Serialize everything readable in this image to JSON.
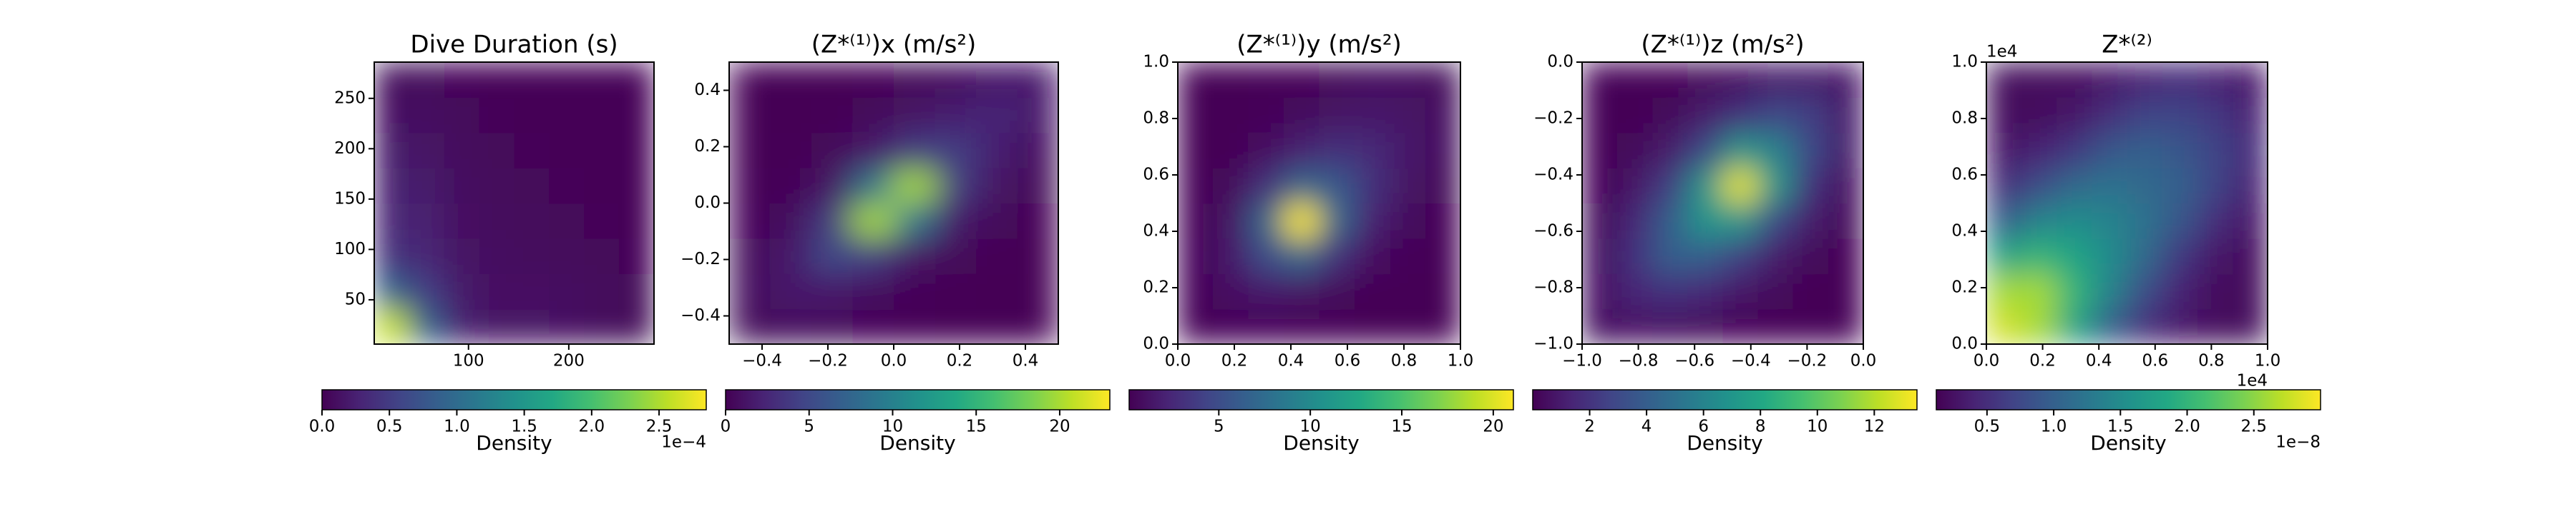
{
  "chart_data": [
    {
      "type": "heatmap",
      "title": "Dive Duration (s)",
      "xlim": [
        6,
        285
      ],
      "ylim": [
        6,
        286
      ],
      "xticks": [
        100,
        200
      ],
      "yticks": [
        50,
        100,
        150,
        200,
        250
      ],
      "colorbar": {
        "label": "Density",
        "clim": [
          0,
          0.000285
        ],
        "offset_label": "1e−4",
        "ticks": [
          {
            "value": 0,
            "label": "0.0"
          },
          {
            "value": 5e-05,
            "label": "0.5"
          },
          {
            "value": 0.0001,
            "label": "1.0"
          },
          {
            "value": 0.00015,
            "label": "1.5"
          },
          {
            "value": 0.0002,
            "label": "2.0"
          },
          {
            "value": 0.00025,
            "label": "2.5"
          }
        ]
      },
      "z": [
        [
          0.00026,
          9e-05,
          2.5e-05,
          1.5e-05,
          1.5e-05,
          1.2e-05,
          8e-06,
          5e-06
        ],
        [
          9e-05,
          5e-05,
          2e-05,
          1.2e-05,
          1.2e-05,
          1e-05,
          7e-06,
          5e-06
        ],
        [
          4e-05,
          3e-05,
          1.5e-05,
          1e-05,
          8e-06,
          7e-06,
          5e-06,
          4e-06
        ],
        [
          3e-05,
          2.5e-05,
          1.2e-05,
          8e-06,
          6e-06,
          5e-06,
          4e-06,
          3e-06
        ],
        [
          2.5e-05,
          2e-05,
          1e-05,
          7e-06,
          5e-06,
          4e-06,
          3e-06,
          3e-06
        ],
        [
          2e-05,
          1.5e-05,
          8e-06,
          5e-06,
          4e-06,
          3e-06,
          3e-06,
          2e-06
        ],
        [
          1.2e-05,
          1e-05,
          6e-06,
          4e-06,
          3e-06,
          3e-06,
          2e-06,
          2e-06
        ],
        [
          8e-06,
          6e-06,
          4e-06,
          3e-06,
          2e-06,
          2e-06,
          2e-06,
          2e-06
        ]
      ]
    },
    {
      "type": "heatmap",
      "title": "(Z*⁽¹⁾)x (m/s²)",
      "xlim": [
        -0.5,
        0.5
      ],
      "ylim": [
        -0.5,
        0.5
      ],
      "xticks": [
        {
          "value": -0.4,
          "label": "−0.4"
        },
        {
          "value": -0.2,
          "label": "−0.2"
        },
        {
          "value": 0,
          "label": "0.0"
        },
        {
          "value": 0.2,
          "label": "0.2"
        },
        {
          "value": 0.4,
          "label": "0.4"
        }
      ],
      "yticks": [
        {
          "value": -0.4,
          "label": "−0.4"
        },
        {
          "value": -0.2,
          "label": "−0.2"
        },
        {
          "value": 0,
          "label": "0.0"
        },
        {
          "value": 0.2,
          "label": "0.2"
        },
        {
          "value": 0.4,
          "label": "0.4"
        }
      ],
      "colorbar": {
        "label": "Density",
        "clim": [
          0,
          23
        ],
        "ticks": [
          0,
          5,
          10,
          15,
          20
        ]
      },
      "z": [
        [
          0.5,
          0.6,
          0.5,
          0.3,
          0.2,
          0.1,
          0.1,
          0.1
        ],
        [
          0.6,
          1.5,
          1.5,
          0.8,
          0.3,
          0.2,
          0.1,
          0.1
        ],
        [
          0.5,
          1.5,
          5,
          4,
          1.2,
          0.4,
          0.2,
          0.1
        ],
        [
          0.3,
          0.8,
          4,
          20,
          9,
          1.5,
          0.5,
          0.2
        ],
        [
          0.2,
          0.3,
          1.2,
          9,
          20,
          4,
          1.2,
          0.4
        ],
        [
          0.1,
          0.2,
          0.4,
          1.5,
          4,
          4,
          2,
          0.8
        ],
        [
          0.1,
          0.1,
          0.2,
          0.5,
          1.2,
          2,
          2.5,
          1.5
        ],
        [
          0.1,
          0.1,
          0.1,
          0.2,
          0.4,
          0.8,
          1.5,
          1.5
        ]
      ]
    },
    {
      "type": "heatmap",
      "title": "(Z*⁽¹⁾)y (m/s²)",
      "xlim": [
        0,
        1
      ],
      "ylim": [
        0,
        1
      ],
      "xticks": [
        {
          "value": 0,
          "label": "0.0"
        },
        {
          "value": 0.2,
          "label": "0.2"
        },
        {
          "value": 0.4,
          "label": "0.4"
        },
        {
          "value": 0.6,
          "label": "0.6"
        },
        {
          "value": 0.8,
          "label": "0.8"
        },
        {
          "value": 1,
          "label": "1.0"
        }
      ],
      "yticks": [
        {
          "value": 0,
          "label": "0.0"
        },
        {
          "value": 0.2,
          "label": "0.2"
        },
        {
          "value": 0.4,
          "label": "0.4"
        },
        {
          "value": 0.6,
          "label": "0.6"
        },
        {
          "value": 0.8,
          "label": "0.8"
        },
        {
          "value": 1,
          "label": "1.0"
        }
      ],
      "colorbar": {
        "label": "Density",
        "clim": [
          0.1,
          21.1
        ],
        "ticks": [
          5,
          10,
          15,
          20
        ]
      },
      "z": [
        [
          0.3,
          0.4,
          0.4,
          0.3,
          0.2,
          0.1,
          0.1,
          0.1
        ],
        [
          0.4,
          1,
          1.5,
          1.2,
          0.6,
          0.3,
          0.2,
          0.1
        ],
        [
          0.4,
          1.5,
          5,
          7,
          3,
          1,
          0.4,
          0.2
        ],
        [
          0.3,
          1.2,
          7,
          21,
          7,
          2,
          0.8,
          0.3
        ],
        [
          0.2,
          0.6,
          3,
          7,
          6,
          3,
          1.2,
          0.5
        ],
        [
          0.1,
          0.3,
          1,
          2,
          3,
          2.5,
          1.5,
          0.8
        ],
        [
          0.1,
          0.2,
          0.4,
          0.8,
          1.2,
          1.5,
          1.2,
          0.8
        ],
        [
          0.1,
          0.1,
          0.2,
          0.3,
          0.5,
          0.8,
          0.8,
          0.6
        ]
      ]
    },
    {
      "type": "heatmap",
      "title": "(Z*⁽¹⁾)z (m/s²)",
      "xlim": [
        -1,
        0
      ],
      "ylim": [
        -1,
        0
      ],
      "xticks": [
        {
          "value": -1,
          "label": "−1.0"
        },
        {
          "value": -0.8,
          "label": "−0.8"
        },
        {
          "value": -0.6,
          "label": "−0.6"
        },
        {
          "value": -0.4,
          "label": "−0.4"
        },
        {
          "value": -0.2,
          "label": "−0.2"
        },
        {
          "value": 0,
          "label": "0.0"
        }
      ],
      "yticks": [
        {
          "value": -1,
          "label": "−1.0"
        },
        {
          "value": -0.8,
          "label": "−0.8"
        },
        {
          "value": -0.6,
          "label": "−0.6"
        },
        {
          "value": -0.4,
          "label": "−0.4"
        },
        {
          "value": -0.2,
          "label": "−0.2"
        },
        {
          "value": 0,
          "label": "0.0"
        }
      ],
      "colorbar": {
        "label": "Density",
        "clim": [
          0,
          13.5
        ],
        "ticks": [
          2,
          4,
          6,
          8,
          10,
          12
        ]
      },
      "z": [
        [
          0.5,
          0.6,
          0.5,
          0.3,
          0.2,
          0.1,
          0.1,
          0.1
        ],
        [
          0.6,
          1.5,
          2,
          1.5,
          0.8,
          0.3,
          0.1,
          0.1
        ],
        [
          0.5,
          2,
          4,
          4,
          2.5,
          1,
          0.3,
          0.1
        ],
        [
          0.3,
          1.5,
          4,
          7,
          7,
          3,
          1,
          0.3
        ],
        [
          0.2,
          0.8,
          2.5,
          7,
          13,
          7,
          2,
          0.5
        ],
        [
          0.1,
          0.3,
          1,
          3,
          7,
          6,
          3,
          1
        ],
        [
          0.1,
          0.1,
          0.3,
          1,
          2,
          3,
          2.5,
          1
        ],
        [
          0.1,
          0.1,
          0.1,
          0.3,
          0.5,
          1,
          1,
          0.8
        ]
      ]
    },
    {
      "type": "heatmap",
      "title": "Z*⁽²⁾",
      "xlim": [
        0,
        10000
      ],
      "ylim": [
        0,
        10000
      ],
      "x_offset_label": "1e4",
      "y_offset_label": "1e4",
      "xticks": [
        {
          "value": 0,
          "label": "0.0"
        },
        {
          "value": 2000,
          "label": "0.2"
        },
        {
          "value": 4000,
          "label": "0.4"
        },
        {
          "value": 6000,
          "label": "0.6"
        },
        {
          "value": 8000,
          "label": "0.8"
        },
        {
          "value": 10000,
          "label": "1.0"
        }
      ],
      "yticks": [
        {
          "value": 0,
          "label": "0.0"
        },
        {
          "value": 2000,
          "label": "0.2"
        },
        {
          "value": 4000,
          "label": "0.4"
        },
        {
          "value": 6000,
          "label": "0.6"
        },
        {
          "value": 8000,
          "label": "0.8"
        },
        {
          "value": 10000,
          "label": "1.0"
        }
      ],
      "colorbar": {
        "label": "Density",
        "clim": [
          1.2e-09,
          3e-08
        ],
        "offset_label": "1e−8",
        "ticks": [
          {
            "value": 5e-09,
            "label": "0.5"
          },
          {
            "value": 1e-08,
            "label": "1.0"
          },
          {
            "value": 1.5e-08,
            "label": "1.5"
          },
          {
            "value": 2e-08,
            "label": "2.0"
          },
          {
            "value": 2.5e-08,
            "label": "2.5"
          }
        ]
      },
      "z": [
        [
          2.8e-08,
          2.6e-08,
          1.8e-08,
          1e-08,
          5e-09,
          3e-09,
          2e-09,
          2e-09
        ],
        [
          2.6e-08,
          2.6e-08,
          2e-08,
          1.4e-08,
          8e-09,
          4e-09,
          2e-09,
          2e-09
        ],
        [
          1.8e-08,
          2e-08,
          1.8e-08,
          1.5e-08,
          1.1e-08,
          6e-09,
          3e-09,
          2e-09
        ],
        [
          1e-08,
          1.4e-08,
          1.5e-08,
          1.4e-08,
          1.2e-08,
          9e-09,
          5e-09,
          3e-09
        ],
        [
          5e-09,
          8e-09,
          1.1e-08,
          1.2e-08,
          1.1e-08,
          1e-08,
          7e-09,
          4e-09
        ],
        [
          3e-09,
          4e-09,
          6e-09,
          9e-09,
          1e-08,
          9e-09,
          7e-09,
          5e-09
        ],
        [
          2e-09,
          2e-09,
          3e-09,
          5e-09,
          7e-09,
          7e-09,
          6e-09,
          4e-09
        ],
        [
          2e-09,
          2e-09,
          2e-09,
          3e-09,
          4e-09,
          5e-09,
          4e-09,
          3e-09
        ]
      ]
    }
  ]
}
